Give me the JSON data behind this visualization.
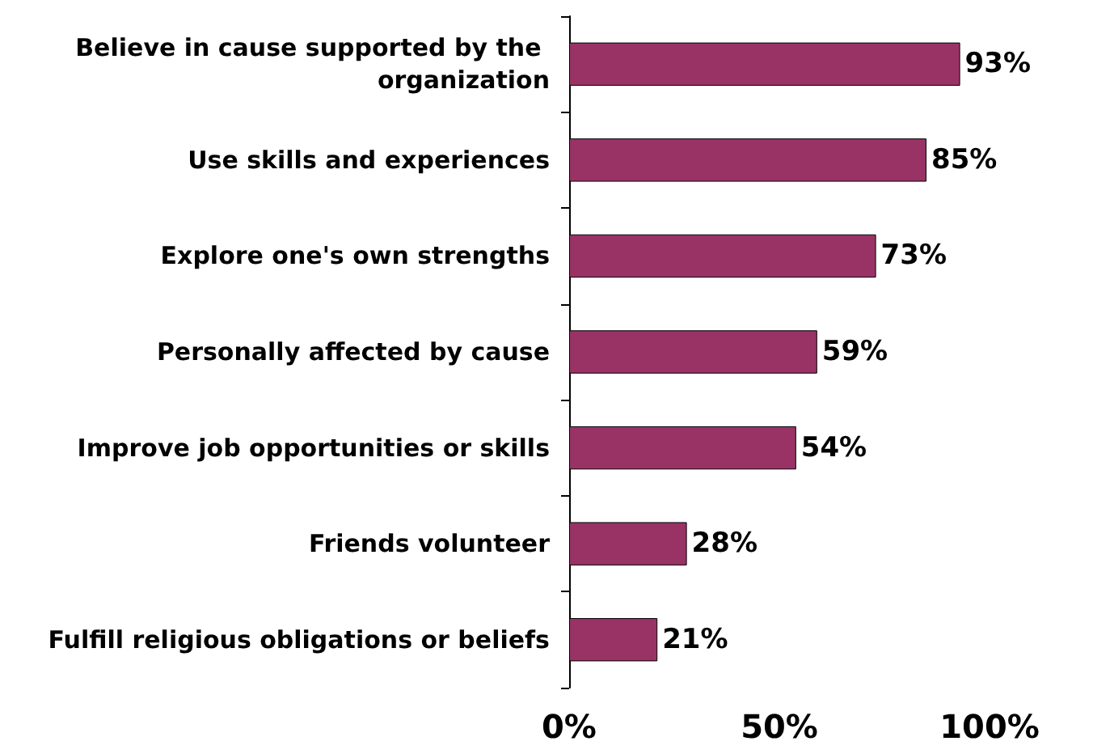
{
  "chart_data": {
    "type": "bar",
    "orientation": "horizontal",
    "categories": [
      "Believe in cause supported by the organization",
      "Use skills and experiences",
      "Explore one's own strengths",
      "Personally affected by cause",
      "Improve job opportunities or skills",
      "Friends volunteer",
      "Fulfill religious obligations or beliefs"
    ],
    "values": [
      93,
      85,
      73,
      59,
      54,
      28,
      21
    ],
    "value_labels": [
      "93%",
      "85%",
      "73%",
      "59%",
      "54%",
      "28%",
      "21%"
    ],
    "color": "#993366",
    "xlim": [
      0,
      100
    ],
    "xticks": [
      {
        "value": 0,
        "label": "0%"
      },
      {
        "value": 50,
        "label": "50%"
      },
      {
        "value": 100,
        "label": "100%"
      }
    ],
    "grid": false
  }
}
